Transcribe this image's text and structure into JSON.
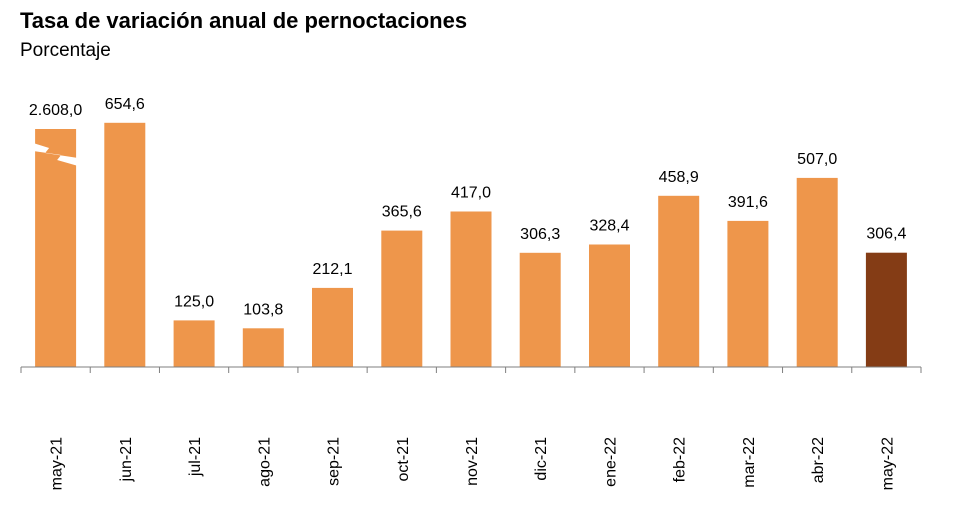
{
  "chart_data": {
    "type": "bar",
    "title": "Tasa de variación anual de pernoctaciones",
    "subtitle": "Porcentaje",
    "categories": [
      "may-21",
      "jun-21",
      "jul-21",
      "ago-21",
      "sep-21",
      "oct-21",
      "nov-21",
      "dic-21",
      "ene-22",
      "feb-22",
      "mar-22",
      "abr-22",
      "may-22"
    ],
    "values": [
      2608.0,
      654.6,
      125.0,
      103.8,
      212.1,
      365.6,
      417.0,
      306.3,
      328.4,
      458.9,
      391.6,
      507.0,
      306.4
    ],
    "value_labels": [
      "2.608,0",
      "654,6",
      "125,0",
      "103,8",
      "212,1",
      "365,6",
      "417,0",
      "306,3",
      "328,4",
      "458,9",
      "391,6",
      "507,0",
      "306,4"
    ],
    "axis_break_on_first_bar": true,
    "colors": {
      "bar": "#EE964B",
      "highlight": "#843C15",
      "axis": "#7f7f7f"
    },
    "highlight_last": true
  }
}
